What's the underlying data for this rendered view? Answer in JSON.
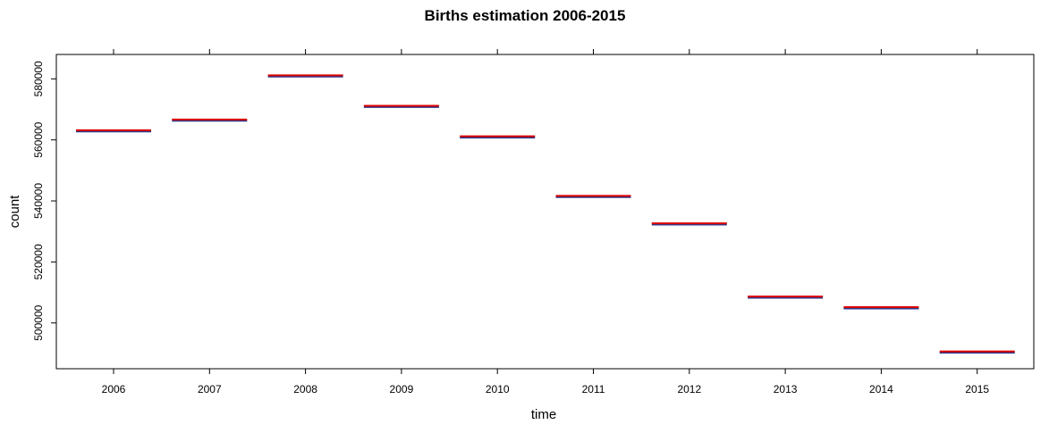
{
  "chart_data": {
    "type": "line",
    "title": "Births estimation 2006-2015",
    "xlabel": "time",
    "ylabel": "count",
    "categories": [
      "2006",
      "2007",
      "2008",
      "2009",
      "2010",
      "2011",
      "2012",
      "2013",
      "2014",
      "2015"
    ],
    "series": [
      {
        "values": [
          563000,
          566500,
          581000,
          571000,
          561000,
          541500,
          532500,
          508500,
          505000,
          490500
        ],
        "color": "#dd0000"
      }
    ],
    "yticks": [
      500000,
      520000,
      540000,
      560000,
      580000
    ],
    "ytick_labels": [
      "500000",
      "520000",
      "540000",
      "560000",
      "580000"
    ],
    "ylim": [
      485000,
      588000
    ],
    "grid": false,
    "mark_shadow_color": "#2b3a8c"
  }
}
